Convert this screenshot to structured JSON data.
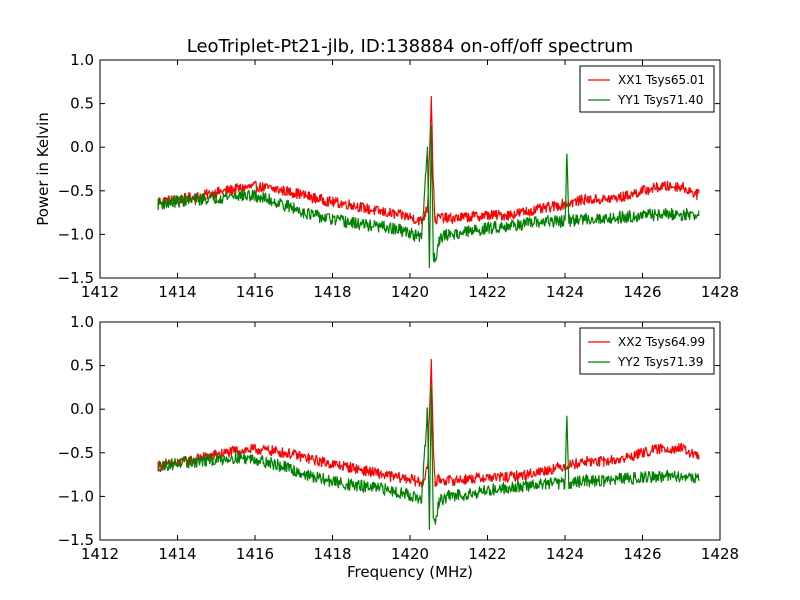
{
  "chart_data": [
    {
      "type": "line",
      "title": "LeoTriplet-Pt21-jlb, ID:138884 on-off/off spectrum",
      "xlabel": "",
      "ylabel": "Power in Kelvin",
      "xlim": [
        1412,
        1428
      ],
      "ylim": [
        -1.5,
        1.0
      ],
      "xticks": [
        1412,
        1414,
        1416,
        1418,
        1420,
        1422,
        1424,
        1426,
        1428
      ],
      "xtick_labels": [
        "1412",
        "1414",
        "1416",
        "1418",
        "1420",
        "1422",
        "1424",
        "1426",
        "1428"
      ],
      "yticks": [
        -1.5,
        -1.0,
        -0.5,
        0.0,
        0.5,
        1.0
      ],
      "ytick_labels": [
        "−1.5",
        "−1.0",
        "−0.5",
        "0.0",
        "0.5",
        "1.0"
      ],
      "legend_position": "top-right",
      "series": [
        {
          "name": "XX1 Tsys65.01",
          "color": "#ff0000",
          "x": [
            1413.5,
            1414.0,
            1414.5,
            1415.0,
            1415.5,
            1416.0,
            1416.5,
            1417.0,
            1417.5,
            1418.0,
            1418.5,
            1419.0,
            1419.5,
            1420.0,
            1420.3,
            1420.45,
            1420.5,
            1420.55,
            1420.6,
            1420.65,
            1420.75,
            1421.0,
            1421.5,
            1422.0,
            1422.5,
            1423.0,
            1423.5,
            1424.0,
            1424.5,
            1425.0,
            1425.5,
            1426.0,
            1426.5,
            1427.0,
            1427.45
          ],
          "y": [
            -0.62,
            -0.6,
            -0.57,
            -0.52,
            -0.48,
            -0.45,
            -0.48,
            -0.52,
            -0.58,
            -0.63,
            -0.66,
            -0.72,
            -0.76,
            -0.8,
            -0.85,
            -0.7,
            -0.1,
            0.58,
            -0.4,
            -0.85,
            -0.8,
            -0.82,
            -0.8,
            -0.78,
            -0.78,
            -0.74,
            -0.7,
            -0.65,
            -0.6,
            -0.6,
            -0.57,
            -0.5,
            -0.45,
            -0.45,
            -0.55
          ]
        },
        {
          "name": "YY1 Tsys71.40",
          "color": "#008000",
          "x": [
            1413.5,
            1414.0,
            1414.5,
            1415.0,
            1415.5,
            1416.0,
            1416.5,
            1417.0,
            1417.5,
            1418.0,
            1418.5,
            1419.0,
            1419.5,
            1420.0,
            1420.3,
            1420.45,
            1420.5,
            1420.55,
            1420.6,
            1420.65,
            1420.75,
            1421.0,
            1421.5,
            1422.0,
            1422.5,
            1423.0,
            1423.5,
            1424.0,
            1424.05,
            1424.1,
            1424.5,
            1425.0,
            1425.5,
            1426.0,
            1426.5,
            1427.0,
            1427.45
          ],
          "y": [
            -0.65,
            -0.62,
            -0.6,
            -0.58,
            -0.55,
            -0.56,
            -0.62,
            -0.7,
            -0.78,
            -0.83,
            -0.87,
            -0.9,
            -0.93,
            -0.98,
            -1.05,
            0.0,
            -1.38,
            0.25,
            -1.25,
            -1.3,
            -1.05,
            -1.0,
            -0.97,
            -0.93,
            -0.9,
            -0.88,
            -0.85,
            -0.85,
            -0.08,
            -0.85,
            -0.82,
            -0.82,
            -0.8,
            -0.78,
            -0.77,
            -0.77,
            -0.78
          ]
        }
      ]
    },
    {
      "type": "line",
      "title": "",
      "xlabel": "Frequency (MHz)",
      "ylabel": "",
      "xlim": [
        1412,
        1428
      ],
      "ylim": [
        -1.5,
        1.0
      ],
      "xticks": [
        1412,
        1414,
        1416,
        1418,
        1420,
        1422,
        1424,
        1426,
        1428
      ],
      "xtick_labels": [
        "1412",
        "1414",
        "1416",
        "1418",
        "1420",
        "1422",
        "1424",
        "1426",
        "1428"
      ],
      "yticks": [
        -1.5,
        -1.0,
        -0.5,
        0.0,
        0.5,
        1.0
      ],
      "ytick_labels": [
        "−1.5",
        "−1.0",
        "−0.5",
        "0.0",
        "0.5",
        "1.0"
      ],
      "legend_position": "top-right",
      "series": [
        {
          "name": "XX2 Tsys64.99",
          "color": "#ff0000",
          "x": [
            1413.5,
            1414.0,
            1414.5,
            1415.0,
            1415.5,
            1416.0,
            1416.5,
            1417.0,
            1417.5,
            1418.0,
            1418.5,
            1419.0,
            1419.5,
            1420.0,
            1420.3,
            1420.45,
            1420.5,
            1420.55,
            1420.6,
            1420.65,
            1420.75,
            1421.0,
            1421.5,
            1422.0,
            1422.5,
            1423.0,
            1423.5,
            1424.0,
            1424.5,
            1425.0,
            1425.5,
            1426.0,
            1426.5,
            1427.0,
            1427.45
          ],
          "y": [
            -0.65,
            -0.62,
            -0.57,
            -0.52,
            -0.48,
            -0.46,
            -0.48,
            -0.52,
            -0.58,
            -0.63,
            -0.67,
            -0.72,
            -0.77,
            -0.8,
            -0.85,
            -0.7,
            -0.1,
            0.57,
            -0.4,
            -0.85,
            -0.8,
            -0.82,
            -0.8,
            -0.78,
            -0.78,
            -0.75,
            -0.7,
            -0.65,
            -0.6,
            -0.6,
            -0.57,
            -0.5,
            -0.45,
            -0.45,
            -0.55
          ]
        },
        {
          "name": "YY2 Tsys71.39",
          "color": "#008000",
          "x": [
            1413.5,
            1414.0,
            1414.5,
            1415.0,
            1415.5,
            1416.0,
            1416.5,
            1417.0,
            1417.5,
            1418.0,
            1418.5,
            1419.0,
            1419.5,
            1420.0,
            1420.3,
            1420.45,
            1420.5,
            1420.55,
            1420.6,
            1420.65,
            1420.75,
            1421.0,
            1421.5,
            1422.0,
            1422.5,
            1423.0,
            1423.5,
            1424.0,
            1424.05,
            1424.1,
            1424.5,
            1425.0,
            1425.5,
            1426.0,
            1426.5,
            1427.0,
            1427.45
          ],
          "y": [
            -0.65,
            -0.62,
            -0.6,
            -0.58,
            -0.55,
            -0.57,
            -0.63,
            -0.7,
            -0.78,
            -0.83,
            -0.87,
            -0.9,
            -0.93,
            -0.98,
            -1.05,
            0.0,
            -1.38,
            0.25,
            -1.25,
            -1.32,
            -1.05,
            -1.0,
            -0.97,
            -0.93,
            -0.9,
            -0.88,
            -0.85,
            -0.85,
            -0.08,
            -0.85,
            -0.82,
            -0.82,
            -0.8,
            -0.78,
            -0.77,
            -0.77,
            -0.78
          ]
        }
      ]
    }
  ]
}
